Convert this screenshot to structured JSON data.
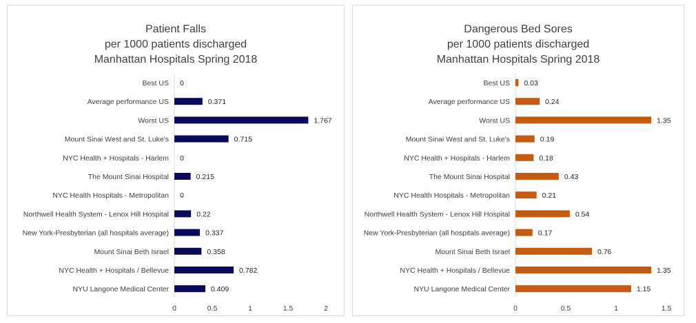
{
  "chart_data": [
    {
      "type": "bar",
      "orientation": "horizontal",
      "title": [
        "Patient Falls",
        "per 1000 patients discharged",
        "Manhattan Hospitals Spring 2018"
      ],
      "categories": [
        "Best US",
        "Average performance US",
        "Worst US",
        "Mount Sinai West and  St. Luke's",
        "NYC Health + Hospitals - Harlem",
        "The Mount Sinai Hospital",
        "NYC Health Hospitals - Metropolitan",
        "Northwell Health System - Lenox Hill Hospital",
        "New York-Presbyterian (all hospitals average)",
        "Mount Sinai Beth Israel",
        "NYC Health + Hospitals / Bellevue",
        "NYU Langone Medical Center"
      ],
      "values": [
        0,
        0.371,
        1.767,
        0.715,
        0,
        0.215,
        0,
        0.22,
        0.337,
        0.358,
        0.782,
        0.409
      ],
      "value_labels": [
        "0",
        "0.371",
        "1.767",
        "0.715",
        "0",
        "0.215",
        "0",
        "0.22",
        "0.337",
        "0.358",
        "0.782",
        "0.409"
      ],
      "xlim": [
        0,
        2
      ],
      "ticks": [
        0,
        0.5,
        1,
        1.5,
        2
      ],
      "tick_labels": [
        "0",
        "0.5",
        "1",
        "1.5",
        "2"
      ],
      "grid": false,
      "color": "#0a0a5c"
    },
    {
      "type": "bar",
      "orientation": "horizontal",
      "title": [
        "Dangerous Bed Sores",
        "per 1000 patients discharged",
        "Manhattan Hospitals Spring 2018"
      ],
      "categories": [
        "Best US",
        "Average performance US",
        "Worst US",
        "Mount Sinai West and  St. Luke's",
        "NYC Health + Hospitals - Harlem",
        "The Mount Sinai Hospital",
        "NYC Health Hospitals - Metropolitan",
        "Northwell Health System - Lenox Hill Hospital",
        "New York-Presbyterian (all hospitals average)",
        "Mount Sinai Beth Israel",
        "NYC Health + Hospitals / Bellevue",
        "NYU Langone Medical Center"
      ],
      "values": [
        0.03,
        0.24,
        1.35,
        0.19,
        0.18,
        0.43,
        0.21,
        0.54,
        0.17,
        0.76,
        1.35,
        1.15
      ],
      "value_labels": [
        "0.03",
        "0.24",
        "1.35",
        "0.19",
        "0.18",
        "0.43",
        "0.21",
        "0.54",
        "0.17",
        "0.76",
        "1.35",
        "1.15"
      ],
      "xlim": [
        0,
        1.5
      ],
      "ticks": [
        0,
        0.5,
        1,
        1.5
      ],
      "tick_labels": [
        "0",
        "0.5",
        "1",
        "1.5"
      ],
      "grid": false,
      "color": "#c55a11"
    }
  ]
}
